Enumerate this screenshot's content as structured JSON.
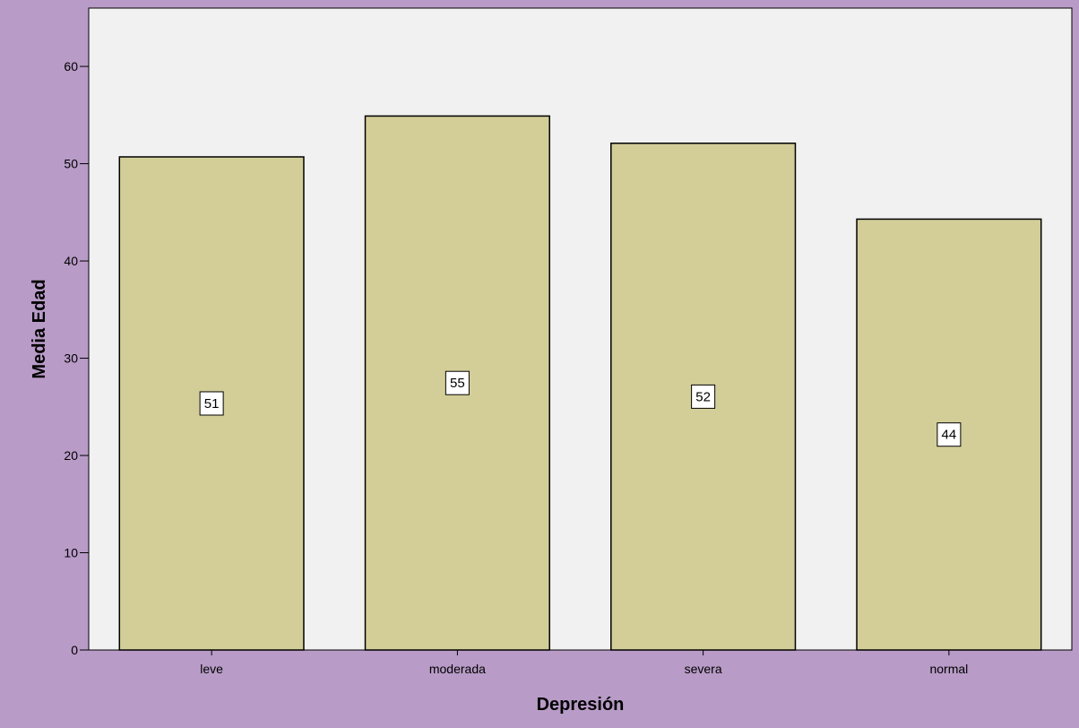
{
  "chart_data": {
    "type": "bar",
    "title": "",
    "xlabel": "Depresión",
    "ylabel": "Media Edad",
    "categories": [
      "leve",
      "moderada",
      "severa",
      "normal"
    ],
    "values": [
      50.7,
      54.9,
      52.1,
      44.3
    ],
    "data_labels": [
      "51",
      "55",
      "52",
      "44"
    ],
    "ylim": [
      0,
      66
    ],
    "yticks": [
      0,
      10,
      20,
      30,
      40,
      50,
      60
    ],
    "grid": false,
    "legend": "none",
    "colors": {
      "page_background": "#b89bc7",
      "plot_background": "#f1f1f1",
      "bar_fill": "#d3ce98",
      "bar_stroke": "#000000"
    }
  }
}
